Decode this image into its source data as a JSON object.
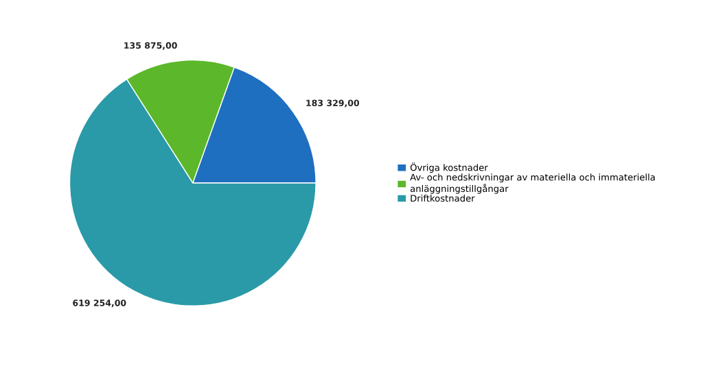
{
  "chart_data": {
    "type": "pie",
    "categories": [
      "Övriga kostnader",
      "Av- och nedskrivningar av materiella och immateriella anläggningstillgångar",
      "Driftkostnader"
    ],
    "values": [
      183329.0,
      135875.0,
      619254.0
    ],
    "colors": [
      "#1f6fc0",
      "#5cb82a",
      "#2a9aa8"
    ],
    "value_labels": [
      "183 329,00",
      "135 875,00",
      "619 254,00"
    ],
    "legend": "right"
  }
}
